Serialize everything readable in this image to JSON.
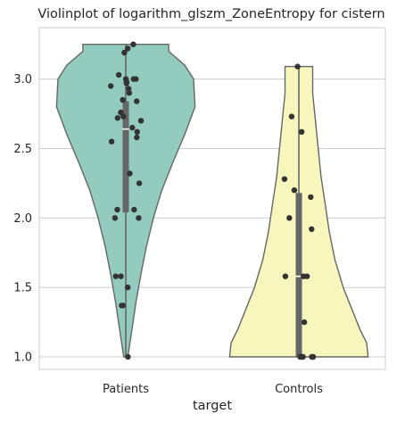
{
  "chart_data": {
    "type": "violin",
    "title": "Violinplot of logarithm_glszm_ZoneEntropy for cistern",
    "xlabel": "target",
    "ylabel": "",
    "categories": [
      "Patients",
      "Controls"
    ],
    "ylim": [
      0.91,
      3.37
    ],
    "yticks": [
      1.0,
      1.5,
      2.0,
      2.5,
      3.0
    ],
    "ytick_labels": [
      "1.0",
      "1.5",
      "2.0",
      "2.5",
      "3.0"
    ],
    "grid": true,
    "series": [
      {
        "category": "Patients",
        "color": "#93cbbf",
        "box": {
          "q1": 2.04,
          "median": 2.64,
          "q3": 2.84,
          "whisker_low": 1.0,
          "whisker_high": 3.25
        },
        "density_profile": [
          [
            1.0,
            0.03
          ],
          [
            1.2,
            0.09
          ],
          [
            1.4,
            0.15
          ],
          [
            1.6,
            0.22
          ],
          [
            1.8,
            0.3
          ],
          [
            2.0,
            0.4
          ],
          [
            2.2,
            0.52
          ],
          [
            2.4,
            0.68
          ],
          [
            2.6,
            0.85
          ],
          [
            2.8,
            1.0
          ],
          [
            3.0,
            0.98
          ],
          [
            3.1,
            0.85
          ],
          [
            3.2,
            0.62
          ],
          [
            3.25,
            0.62
          ]
        ],
        "points": [
          3.25,
          3.22,
          3.19,
          3.03,
          3.0,
          3.0,
          3.0,
          2.98,
          2.97,
          2.95,
          2.93,
          2.9,
          2.85,
          2.84,
          2.76,
          2.73,
          2.72,
          2.7,
          2.65,
          2.62,
          2.58,
          2.55,
          2.32,
          2.25,
          2.06,
          2.06,
          2.0,
          2.0,
          1.58,
          1.58,
          1.5,
          1.37,
          1.37,
          1.0
        ]
      },
      {
        "category": "Controls",
        "color": "#f7f7bd",
        "box": {
          "q1": 1.0,
          "median": 1.58,
          "q3": 2.18,
          "whisker_low": 1.0,
          "whisker_high": 3.09
        },
        "density_profile": [
          [
            1.0,
            1.0
          ],
          [
            1.1,
            0.98
          ],
          [
            1.2,
            0.88
          ],
          [
            1.35,
            0.76
          ],
          [
            1.5,
            0.64
          ],
          [
            1.7,
            0.52
          ],
          [
            1.9,
            0.44
          ],
          [
            2.1,
            0.38
          ],
          [
            2.3,
            0.32
          ],
          [
            2.5,
            0.28
          ],
          [
            2.7,
            0.24
          ],
          [
            2.9,
            0.2
          ],
          [
            3.09,
            0.2
          ]
        ],
        "points": [
          3.09,
          2.73,
          2.62,
          2.28,
          2.2,
          2.15,
          2.0,
          1.92,
          1.58,
          1.58,
          1.58,
          1.25,
          1.0,
          1.0,
          1.0,
          1.0,
          1.0,
          1.0,
          1.0
        ]
      }
    ]
  }
}
